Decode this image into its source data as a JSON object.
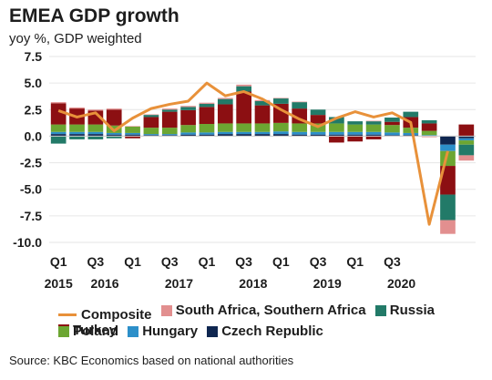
{
  "header": {
    "title": "EMEA GDP growth",
    "subtitle": "yoy %, GDP weighted"
  },
  "footer": {
    "source": "Source: KBC Economics based on national authorities"
  },
  "colors": {
    "composite": "#E8913A",
    "south_africa": "#E28F8F",
    "russia": "#227A68",
    "turkey": "#8C0F12",
    "poland": "#6CA632",
    "hungary": "#2C8FC9",
    "czech": "#0F2650"
  },
  "chart_data": {
    "type": "bar",
    "stacked": true,
    "ylim": [
      -10,
      7.5
    ],
    "yticks": [
      "7.5",
      "5.0",
      "2.5",
      "0.0",
      "-2.5",
      "-5.0",
      "-7.5",
      "-10.0"
    ],
    "ytick_values": [
      7.5,
      5.0,
      2.5,
      0.0,
      -2.5,
      -5.0,
      -7.5,
      -10.0
    ],
    "grid": true,
    "legend": "bottom",
    "quarter_labels": [
      "Q1",
      "Q3",
      "Q1",
      "Q3",
      "Q1",
      "Q3",
      "Q1",
      "Q3",
      "Q1",
      "Q3"
    ],
    "quarter_label_indices": [
      0,
      2,
      4,
      6,
      8,
      10,
      12,
      14,
      16,
      18
    ],
    "year_labels": [
      "2015",
      "2016",
      "2017",
      "2018",
      "2019",
      "2020"
    ],
    "year_label_positions": [
      0,
      2.5,
      6.5,
      10.5,
      14.5,
      18.5
    ],
    "categories": [
      "2015 Q1",
      "2015 Q2",
      "2015 Q3",
      "2015 Q4",
      "2016 Q1",
      "2016 Q2",
      "2016 Q3",
      "2016 Q4",
      "2017 Q1",
      "2017 Q2",
      "2017 Q3",
      "2017 Q4",
      "2018 Q1",
      "2018 Q2",
      "2018 Q3",
      "2018 Q4",
      "2019 Q1",
      "2019 Q2",
      "2019 Q3",
      "2019 Q4",
      "2020 Q1",
      "2020 Q2",
      "2020 Q3"
    ],
    "series": [
      {
        "name": "South Africa, Southern Africa",
        "key": "south_africa",
        "values": [
          0.1,
          0.1,
          0.1,
          0.1,
          0.05,
          0.05,
          0.1,
          0.1,
          0.1,
          0.1,
          0.15,
          0.1,
          0.05,
          0.05,
          0.0,
          0.0,
          0.0,
          0.05,
          0.0,
          -0.05,
          -0.1,
          -1.3,
          -0.5
        ]
      },
      {
        "name": "Russia",
        "key": "russia",
        "values": [
          -0.7,
          -0.3,
          -0.3,
          -0.2,
          0.0,
          0.2,
          0.2,
          0.3,
          0.3,
          0.5,
          0.5,
          0.4,
          0.5,
          0.6,
          0.5,
          0.6,
          0.3,
          0.3,
          0.4,
          0.5,
          0.3,
          -2.4,
          -1.0
        ]
      },
      {
        "name": "Turkey",
        "key": "turkey",
        "values": [
          2.0,
          1.5,
          1.3,
          1.5,
          -0.2,
          1.0,
          1.5,
          1.4,
          1.6,
          1.8,
          3.0,
          1.7,
          1.8,
          1.4,
          0.8,
          -0.6,
          -0.5,
          -0.3,
          0.3,
          1.0,
          0.7,
          -2.7,
          1.1
        ]
      },
      {
        "name": "Poland",
        "key": "poland",
        "values": [
          0.7,
          0.7,
          0.7,
          0.7,
          0.6,
          0.6,
          0.6,
          0.7,
          0.8,
          0.8,
          0.8,
          0.8,
          0.8,
          0.8,
          0.8,
          0.8,
          0.7,
          0.7,
          0.7,
          0.5,
          0.4,
          -1.4,
          -0.4
        ]
      },
      {
        "name": "Hungary",
        "key": "hungary",
        "values": [
          0.2,
          0.2,
          0.2,
          0.15,
          0.15,
          0.1,
          0.1,
          0.2,
          0.2,
          0.2,
          0.2,
          0.2,
          0.25,
          0.25,
          0.25,
          0.25,
          0.25,
          0.25,
          0.25,
          0.2,
          0.1,
          -0.6,
          -0.2
        ]
      },
      {
        "name": "Czech Republic",
        "key": "czech",
        "values": [
          0.2,
          0.2,
          0.2,
          0.15,
          0.15,
          0.1,
          0.1,
          0.15,
          0.15,
          0.2,
          0.2,
          0.2,
          0.2,
          0.15,
          0.15,
          0.15,
          0.15,
          0.15,
          0.1,
          0.1,
          0.0,
          -0.8,
          -0.2
        ]
      }
    ],
    "composite": {
      "name": "Composite",
      "key": "composite",
      "values": [
        2.4,
        1.8,
        2.2,
        0.5,
        1.7,
        2.6,
        3.0,
        3.3,
        5.0,
        3.8,
        4.2,
        3.5,
        2.5,
        1.6,
        0.9,
        1.7,
        2.3,
        1.8,
        2.2,
        1.3,
        -8.3,
        -1.4,
        null
      ]
    }
  }
}
